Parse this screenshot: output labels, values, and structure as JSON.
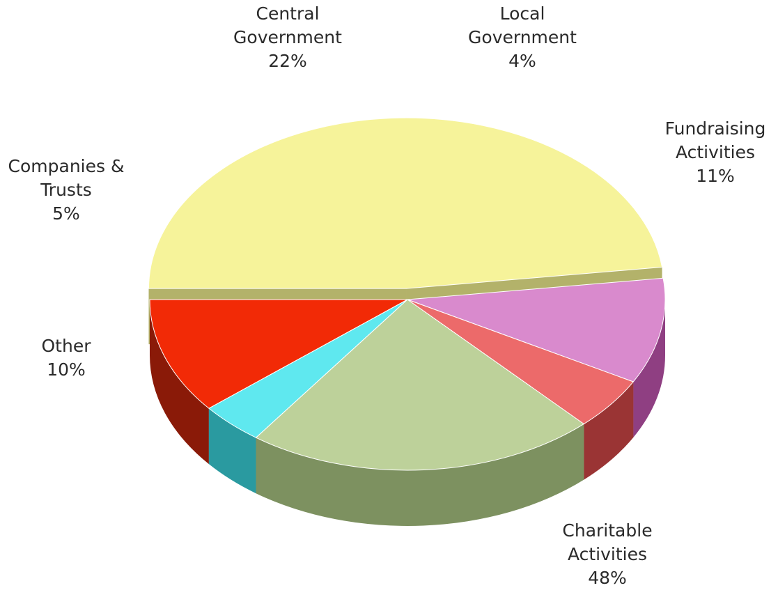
{
  "chart_data": {
    "type": "pie",
    "title": "",
    "series": [
      {
        "values": [
          {
            "label_lines": [
              "Charitable",
              "Activities"
            ],
            "value": 48,
            "value_text": "48%",
            "color": "#f6f39a",
            "side_color": "#b3b26a"
          },
          {
            "label_lines": [
              "Other"
            ],
            "value": 10,
            "value_text": "10%",
            "color": "#d98acd",
            "side_color": "#8f3f82"
          },
          {
            "label_lines": [
              "Companies &",
              "Trusts"
            ],
            "value": 5,
            "value_text": "5%",
            "color": "#ec6a6a",
            "side_color": "#9a3434"
          },
          {
            "label_lines": [
              "Central",
              "Government"
            ],
            "value": 22,
            "value_text": "22%",
            "color": "#bdd19a",
            "side_color": "#7d9160"
          },
          {
            "label_lines": [
              "Local",
              "Government"
            ],
            "value": 4,
            "value_text": "4%",
            "color": "#5fe8ef",
            "side_color": "#2a9aa0"
          },
          {
            "label_lines": [
              "Fundraising",
              "Activities"
            ],
            "value": 11,
            "value_text": "11%",
            "color": "#f22a06",
            "side_color": "#8a1a08"
          }
        ]
      }
    ],
    "legend": "none"
  }
}
